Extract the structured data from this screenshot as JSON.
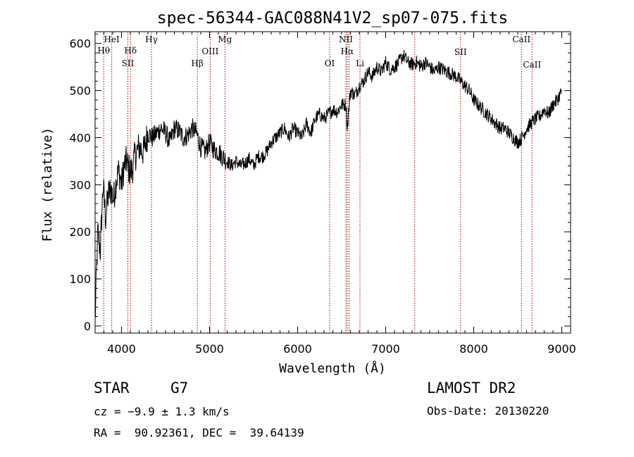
{
  "chart_data": {
    "type": "line",
    "title": "spec-56344-GAC088N41V2_sp07-075.fits",
    "xlabel": "Wavelength (Å)",
    "ylabel": "Flux (relative)",
    "xlim": [
      3700,
      9100
    ],
    "ylim": [
      -15,
      625
    ],
    "x_ticks": [
      4000,
      5000,
      6000,
      7000,
      8000,
      9000
    ],
    "y_ticks": [
      0,
      100,
      200,
      300,
      400,
      500,
      600
    ],
    "grid": false,
    "line_color": "#000000",
    "marker_color": "#aa0000",
    "series": [
      {
        "x": [
          3700,
          3730,
          3760,
          3790,
          3820,
          3850,
          3880,
          3910,
          3940,
          3970,
          4000,
          4030,
          4060,
          4090,
          4120,
          4150,
          4200,
          4250,
          4300,
          4350,
          4400,
          4450,
          4500,
          4550,
          4600,
          4650,
          4700,
          4750,
          4800,
          4850,
          4900,
          4950,
          5000,
          5050,
          5100,
          5150,
          5200,
          5250,
          5300,
          5350,
          5400,
          5450,
          5500,
          5550,
          5600,
          5650,
          5700,
          5750,
          5800,
          5850,
          5900,
          5950,
          6000,
          6050,
          6100,
          6150,
          6200,
          6250,
          6300,
          6350,
          6400,
          6450,
          6500,
          6550,
          6563,
          6600,
          6650,
          6700,
          6750,
          6800,
          6850,
          6900,
          6950,
          7000,
          7050,
          7100,
          7150,
          7200,
          7250,
          7300,
          7350,
          7400,
          7450,
          7500,
          7550,
          7600,
          7650,
          7700,
          7750,
          7800,
          7850,
          7900,
          7950,
          8000,
          8050,
          8100,
          8150,
          8200,
          8250,
          8300,
          8350,
          8400,
          8450,
          8500,
          8550,
          8600,
          8650,
          8700,
          8750,
          8800,
          8850,
          8900,
          8950,
          9000
        ],
        "y": [
          10,
          200,
          160,
          300,
          230,
          280,
          290,
          270,
          310,
          330,
          300,
          340,
          350,
          330,
          330,
          360,
          380,
          370,
          410,
          400,
          410,
          420,
          410,
          390,
          420,
          415,
          400,
          405,
          420,
          410,
          380,
          370,
          390,
          375,
          370,
          360,
          350,
          340,
          350,
          340,
          345,
          355,
          340,
          360,
          360,
          370,
          390,
          400,
          410,
          420,
          400,
          420,
          410,
          400,
          430,
          410,
          440,
          450,
          440,
          450,
          460,
          455,
          470,
          470,
          420,
          500,
          490,
          510,
          520,
          540,
          530,
          550,
          540,
          560,
          545,
          550,
          560,
          575,
          560,
          555,
          560,
          550,
          560,
          550,
          540,
          550,
          545,
          540,
          535,
          530,
          520,
          510,
          500,
          480,
          470,
          460,
          450,
          440,
          430,
          420,
          420,
          410,
          400,
          390,
          400,
          420,
          430,
          440,
          445,
          460,
          450,
          470,
          480,
          500
        ]
      }
    ],
    "line_markers": [
      {
        "label": "Hθ",
        "x": 3798
      },
      {
        "label": "HeI",
        "x": 3889
      },
      {
        "label": "SII",
        "x": 4072
      },
      {
        "label": "Hδ",
        "x": 4102
      },
      {
        "label": "Hγ",
        "x": 4340
      },
      {
        "label": "Hβ",
        "x": 4861
      },
      {
        "label": "OIII",
        "x": 5007
      },
      {
        "label": "Mg",
        "x": 5175
      },
      {
        "label": "OI",
        "x": 6364
      },
      {
        "label": "NII",
        "x": 6548
      },
      {
        "label": "Hα",
        "x": 6563
      },
      {
        "label": "NII",
        "x": 6584
      },
      {
        "label": "Li",
        "x": 6708
      },
      {
        "label": "OII",
        "x": 7330
      },
      {
        "label": "SII",
        "x": 7850
      },
      {
        "label": "CaII",
        "x": 8542
      },
      {
        "label": "CaII",
        "x": 8662
      }
    ]
  },
  "info": {
    "object_class": "STAR",
    "subclass": "G7",
    "cz_line": "cz = −9.9 ± 1.3 km/s",
    "coords_line": "RA =  90.92361, DEC =  39.64139",
    "survey": "LAMOST DR2",
    "obs_date": "Obs-Date: 20130220"
  }
}
